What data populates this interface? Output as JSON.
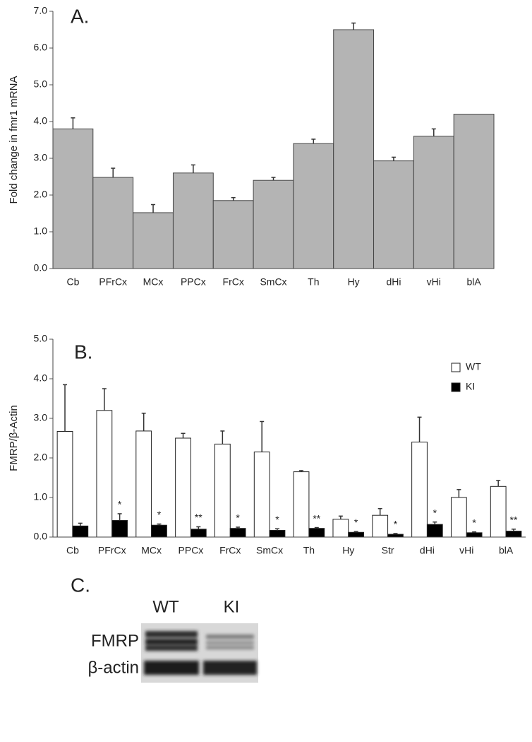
{
  "chart_data": [
    {
      "type": "bar",
      "panel": "A.",
      "ylabel": "Fold change in fmr1 mRNA",
      "categories": [
        "Cb",
        "PFrCx",
        "MCx",
        "PPCx",
        "FrCx",
        "SmCx",
        "Th",
        "Hy",
        "dHi",
        "vHi",
        "blA"
      ],
      "values": [
        3.8,
        2.48,
        1.52,
        2.6,
        1.85,
        2.4,
        3.4,
        6.5,
        2.93,
        3.6,
        4.2
      ],
      "errors": [
        0.3,
        0.25,
        0.22,
        0.22,
        0.08,
        0.08,
        0.12,
        0.18,
        0.1,
        0.2,
        0
      ],
      "color": "#b4b4b4",
      "ylim": [
        0,
        7
      ],
      "yticks": [
        {
          "value": 0,
          "label": "0.0"
        },
        {
          "value": 1,
          "label": "1.0"
        },
        {
          "value": 2,
          "label": "2.0"
        },
        {
          "value": 3,
          "label": "3.0"
        },
        {
          "value": 4,
          "label": "4.0"
        },
        {
          "value": 5,
          "label": "5.0"
        },
        {
          "value": 6,
          "label": "6.0"
        },
        {
          "value": 7,
          "label": "7.0"
        }
      ]
    },
    {
      "type": "bar",
      "panel": "B.",
      "ylabel": "FMRP/β-Actin",
      "categories": [
        "Cb",
        "PFrCx",
        "MCx",
        "PPCx",
        "FrCx",
        "SmCx",
        "Th",
        "Hy",
        "Str",
        "dHi",
        "vHi",
        "blA"
      ],
      "series": [
        {
          "name": "WT",
          "color": "#ffffff",
          "values": [
            2.67,
            3.2,
            2.68,
            2.5,
            2.35,
            2.15,
            1.65,
            0.45,
            0.55,
            2.4,
            1.0,
            1.28
          ],
          "errors": [
            1.18,
            0.55,
            0.45,
            0.12,
            0.33,
            0.77,
            0.03,
            0.08,
            0.17,
            0.63,
            0.2,
            0.15
          ]
        },
        {
          "name": "KI",
          "color": "#000000",
          "values": [
            0.28,
            0.42,
            0.3,
            0.2,
            0.22,
            0.17,
            0.22,
            0.12,
            0.07,
            0.32,
            0.11,
            0.15
          ],
          "errors": [
            0.07,
            0.17,
            0.03,
            0.06,
            0.03,
            0.04,
            0.02,
            0.02,
            0.02,
            0.06,
            0.02,
            0.05
          ]
        }
      ],
      "annotations": [
        null,
        "*",
        "*",
        "**",
        "*",
        "*",
        "**",
        "*",
        "*",
        "*",
        "*",
        "**"
      ],
      "legend": "top-right",
      "ylim": [
        0,
        5
      ],
      "yticks": [
        {
          "value": 0,
          "label": "0.0"
        },
        {
          "value": 1,
          "label": "1.0"
        },
        {
          "value": 2,
          "label": "2.0"
        },
        {
          "value": 3,
          "label": "3.0"
        },
        {
          "value": 4,
          "label": "4.0"
        },
        {
          "value": 5,
          "label": "5.0"
        }
      ]
    }
  ],
  "blot": {
    "panel": "C.",
    "lanes": [
      "WT",
      "KI"
    ],
    "rows": [
      "FMRP",
      "β-actin"
    ]
  }
}
